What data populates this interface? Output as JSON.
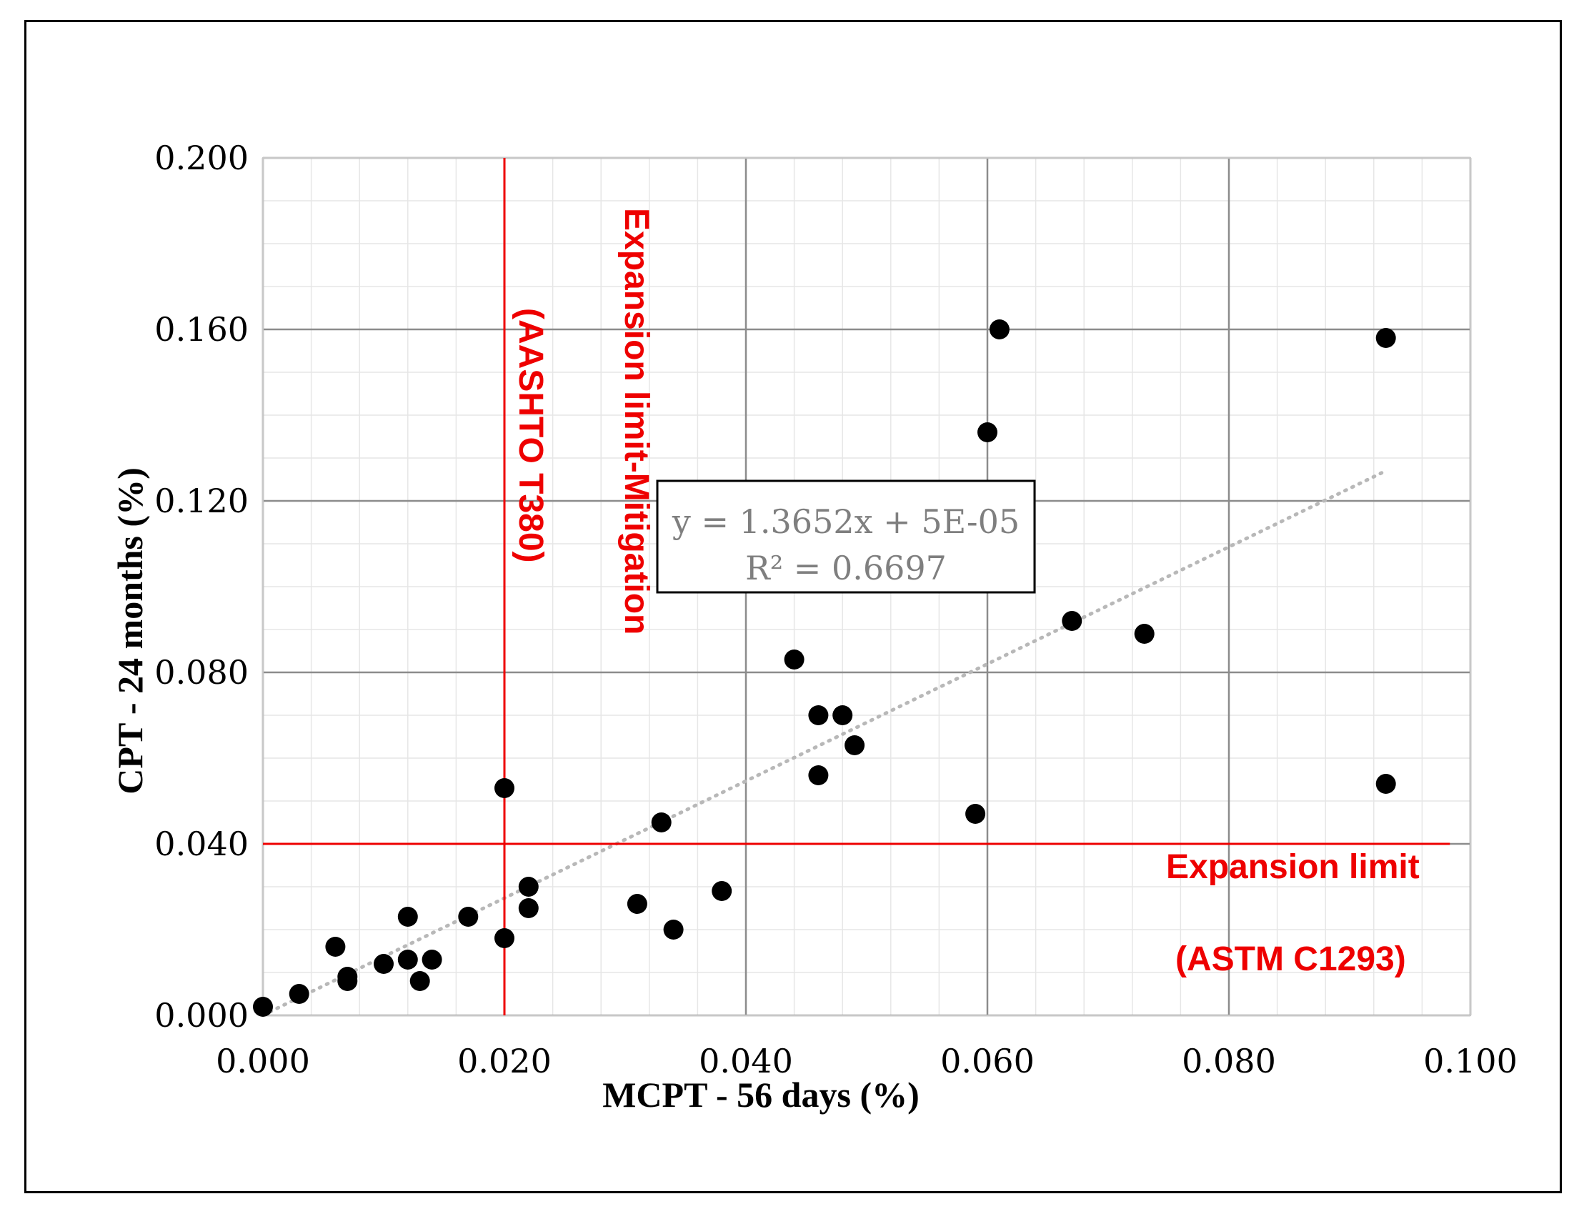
{
  "chart_data": {
    "type": "scatter",
    "xlabel": "MCPT - 56 days (%)",
    "ylabel": "CPT - 24 months (%)",
    "xlim": [
      0,
      0.1
    ],
    "ylim": [
      0,
      0.2
    ],
    "x_ticks": [
      "0.000",
      "0.020",
      "0.040",
      "0.060",
      "0.080",
      "0.100"
    ],
    "y_ticks": [
      "0.000",
      "0.040",
      "0.080",
      "0.120",
      "0.160",
      "0.200"
    ],
    "x_tick_values": [
      0,
      0.02,
      0.04,
      0.06,
      0.08,
      0.1
    ],
    "y_tick_values": [
      0,
      0.04,
      0.08,
      0.12,
      0.16,
      0.2
    ],
    "grid": true,
    "series": [
      {
        "name": "Data",
        "marker": "circle",
        "color": "#000000",
        "points": [
          {
            "x": 0.0,
            "y": 0.002
          },
          {
            "x": 0.003,
            "y": 0.005
          },
          {
            "x": 0.006,
            "y": 0.016
          },
          {
            "x": 0.007,
            "y": 0.009
          },
          {
            "x": 0.007,
            "y": 0.008
          },
          {
            "x": 0.01,
            "y": 0.012
          },
          {
            "x": 0.012,
            "y": 0.023
          },
          {
            "x": 0.012,
            "y": 0.013
          },
          {
            "x": 0.013,
            "y": 0.008
          },
          {
            "x": 0.014,
            "y": 0.013
          },
          {
            "x": 0.017,
            "y": 0.023
          },
          {
            "x": 0.02,
            "y": 0.018
          },
          {
            "x": 0.02,
            "y": 0.053
          },
          {
            "x": 0.022,
            "y": 0.03
          },
          {
            "x": 0.022,
            "y": 0.025
          },
          {
            "x": 0.031,
            "y": 0.026
          },
          {
            "x": 0.033,
            "y": 0.045
          },
          {
            "x": 0.034,
            "y": 0.02
          },
          {
            "x": 0.038,
            "y": 0.029
          },
          {
            "x": 0.044,
            "y": 0.083
          },
          {
            "x": 0.046,
            "y": 0.07
          },
          {
            "x": 0.046,
            "y": 0.056
          },
          {
            "x": 0.048,
            "y": 0.07
          },
          {
            "x": 0.049,
            "y": 0.063
          },
          {
            "x": 0.059,
            "y": 0.047
          },
          {
            "x": 0.06,
            "y": 0.136
          },
          {
            "x": 0.061,
            "y": 0.16
          },
          {
            "x": 0.067,
            "y": 0.092
          },
          {
            "x": 0.073,
            "y": 0.089
          },
          {
            "x": 0.093,
            "y": 0.158
          },
          {
            "x": 0.093,
            "y": 0.054
          }
        ]
      }
    ],
    "trendline": {
      "type": "linear",
      "slope": 1.3652,
      "intercept": 5e-05,
      "x_range": [
        0,
        0.093
      ],
      "color": "#b8b8b8",
      "style": "dotted",
      "equation": "y = 1.3652x + 5E-05",
      "r_squared": "R² = 0.6697"
    },
    "reference_lines": [
      {
        "orientation": "vertical",
        "value": 0.02,
        "color": "#ee0000",
        "label_line1": "Expansion limit-Mitigation",
        "label_line2": "(AASHTO T380)"
      },
      {
        "orientation": "horizontal",
        "value": 0.04,
        "x_end": 0.0983,
        "color": "#ee0000",
        "label_line1": "Expansion limit",
        "label_line2": "(ASTM C1293)"
      }
    ]
  }
}
